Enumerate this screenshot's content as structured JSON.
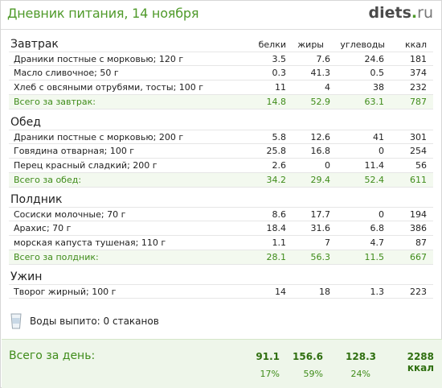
{
  "header": {
    "title": "Дневник питания, 14 ноября",
    "logo_main": "diets",
    "logo_dot": ".",
    "logo_tld": "ru"
  },
  "columns": {
    "protein": "белки",
    "fat": "жиры",
    "carbs": "углеводы",
    "kcal": "ккал"
  },
  "meals": [
    {
      "title": "Завтрак",
      "items": [
        {
          "name": "Драники постные с морковью; 120 г",
          "p": "3.5",
          "f": "7.6",
          "c": "24.6",
          "k": "181"
        },
        {
          "name": "Масло сливочное; 50 г",
          "p": "0.3",
          "f": "41.3",
          "c": "0.5",
          "k": "374"
        },
        {
          "name": "Хлеб с овсяными отрубями, тосты; 100 г",
          "p": "11",
          "f": "4",
          "c": "38",
          "k": "232"
        }
      ],
      "total": {
        "name": "Всего за завтрак:",
        "p": "14.8",
        "f": "52.9",
        "c": "63.1",
        "k": "787"
      }
    },
    {
      "title": "Обед",
      "items": [
        {
          "name": "Драники постные с морковью; 200 г",
          "p": "5.8",
          "f": "12.6",
          "c": "41",
          "k": "301"
        },
        {
          "name": "Говядина отварная; 100 г",
          "p": "25.8",
          "f": "16.8",
          "c": "0",
          "k": "254"
        },
        {
          "name": "Перец красный сладкий; 200 г",
          "p": "2.6",
          "f": "0",
          "c": "11.4",
          "k": "56"
        }
      ],
      "total": {
        "name": "Всего за обед:",
        "p": "34.2",
        "f": "29.4",
        "c": "52.4",
        "k": "611"
      }
    },
    {
      "title": "Полдник",
      "items": [
        {
          "name": "Сосиски молочные; 70 г",
          "p": "8.6",
          "f": "17.7",
          "c": "0",
          "k": "194"
        },
        {
          "name": "Арахис; 70 г",
          "p": "18.4",
          "f": "31.6",
          "c": "6.8",
          "k": "386"
        },
        {
          "name": "морская капуста тушеная; 110 г",
          "p": "1.1",
          "f": "7",
          "c": "4.7",
          "k": "87"
        }
      ],
      "total": {
        "name": "Всего за полдник:",
        "p": "28.1",
        "f": "56.3",
        "c": "11.5",
        "k": "667"
      }
    },
    {
      "title": "Ужин",
      "items": [
        {
          "name": "Творог жирный; 100 г",
          "p": "14",
          "f": "18",
          "c": "1.3",
          "k": "223"
        }
      ]
    }
  ],
  "water": {
    "icon": "glass-icon",
    "label": "Воды выпито: 0 стаканов"
  },
  "summary": {
    "label": "Всего за день:",
    "protein": "91.1",
    "fat": "156.6",
    "carbs": "128.3",
    "kcal": "2288 ккал",
    "protein_pct": "17%",
    "fat_pct": "59%",
    "carbs_pct": "24%"
  },
  "colors": {
    "accent_green": "#4f9a2a",
    "total_green": "#3f8c1a",
    "summary_bg": "#eef6ea"
  }
}
